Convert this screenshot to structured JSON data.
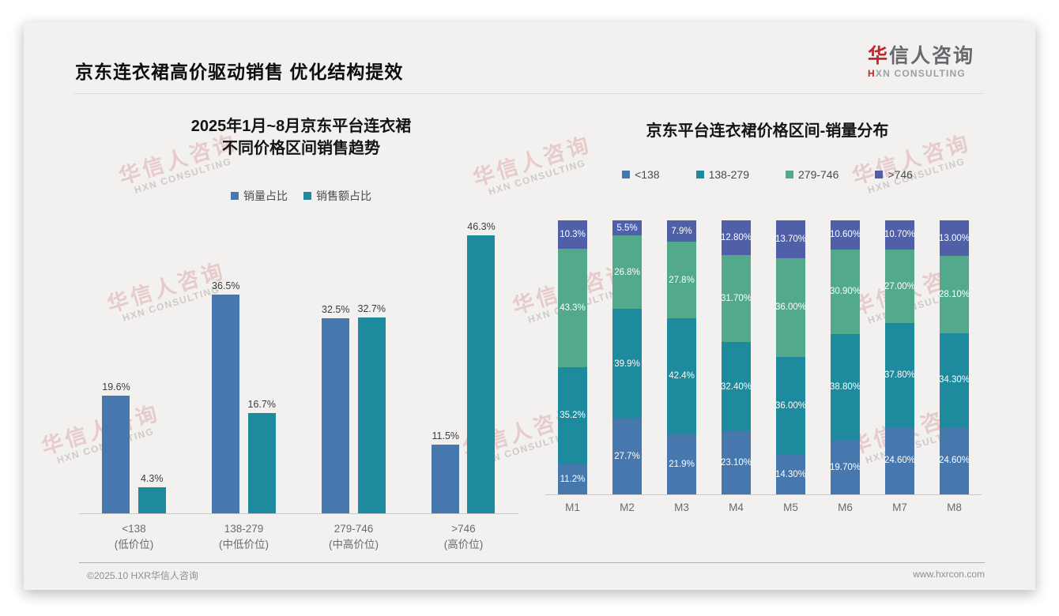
{
  "page": {
    "title": "京东连衣裙高价驱动销售 优化结构提效",
    "logo": {
      "brand_red": "华",
      "brand_rest": "信人咨询",
      "subtitle_red": "H",
      "subtitle_rest": "XN CONSULTING"
    },
    "watermark": {
      "line1": "华信人咨询",
      "line2": "HXN CONSULTING"
    },
    "footer": {
      "left": "©2025.10 HXR华信人咨询",
      "right": "www.hxrcon.com"
    }
  },
  "colors": {
    "blue": "#4677ad",
    "teal": "#1d8a9e",
    "green": "#52a98b",
    "indigo": "#4f60a8",
    "accent_red": "#c1272d"
  },
  "chart_data": [
    {
      "type": "bar",
      "stacked": false,
      "title": "2025年1月~8月京东平台连衣裙\n不同价格区间销售趋势",
      "categories": [
        "<138\n(低价位)",
        "138-279\n(中低价位)",
        "279-746\n(中高价位)",
        ">746\n(高价位)"
      ],
      "series": [
        {
          "name": "销量占比",
          "color": "#4677ad",
          "values": [
            19.6,
            36.5,
            32.5,
            11.5
          ],
          "labels": [
            "19.6%",
            "36.5%",
            "32.5%",
            "11.5%"
          ]
        },
        {
          "name": "销售额占比",
          "color": "#1d8a9e",
          "values": [
            4.3,
            16.7,
            32.7,
            46.3
          ],
          "labels": [
            "4.3%",
            "16.7%",
            "32.7%",
            "46.3%"
          ]
        }
      ],
      "ylabel": "",
      "xlabel": "",
      "ylim": [
        0,
        50
      ],
      "grid": false,
      "legend_position": "top",
      "value_suffix": "%"
    },
    {
      "type": "bar",
      "stacked": true,
      "title": "京东平台连衣裙价格区间-销量分布",
      "categories": [
        "M1",
        "M2",
        "M3",
        "M4",
        "M5",
        "M6",
        "M7",
        "M8"
      ],
      "series": [
        {
          "name": "<138",
          "color": "#4677ad",
          "values": [
            11.2,
            27.7,
            21.9,
            23.1,
            14.3,
            19.7,
            24.6,
            24.6
          ],
          "labels": [
            "11.2%",
            "27.7%",
            "21.9%",
            "23.10%",
            "14.30%",
            "19.70%",
            "24.60%",
            "24.60%"
          ]
        },
        {
          "name": "138-279",
          "color": "#1d8a9e",
          "values": [
            35.2,
            39.9,
            42.4,
            32.4,
            36.0,
            38.8,
            37.8,
            34.3
          ],
          "labels": [
            "35.2%",
            "39.9%",
            "42.4%",
            "32.40%",
            "36.00%",
            "38.80%",
            "37.80%",
            "34.30%"
          ]
        },
        {
          "name": "279-746",
          "color": "#52a98b",
          "values": [
            43.3,
            26.8,
            27.8,
            31.7,
            36.0,
            30.9,
            27.0,
            28.1
          ],
          "labels": [
            "43.3%",
            "26.8%",
            "27.8%",
            "31.70%",
            "36.00%",
            "30.90%",
            "27.00%",
            "28.10%"
          ]
        },
        {
          "name": ">746",
          "color": "#4f60a8",
          "values": [
            10.3,
            5.5,
            7.9,
            12.8,
            13.7,
            10.6,
            10.7,
            13.0
          ],
          "labels": [
            "10.3%",
            "5.5%",
            "7.9%",
            "12.80%",
            "13.70%",
            "10.60%",
            "10.70%",
            "13.00%"
          ]
        }
      ],
      "ylabel": "",
      "xlabel": "",
      "ylim": [
        0,
        100
      ],
      "grid": false,
      "legend_position": "top",
      "value_suffix": "%"
    }
  ]
}
